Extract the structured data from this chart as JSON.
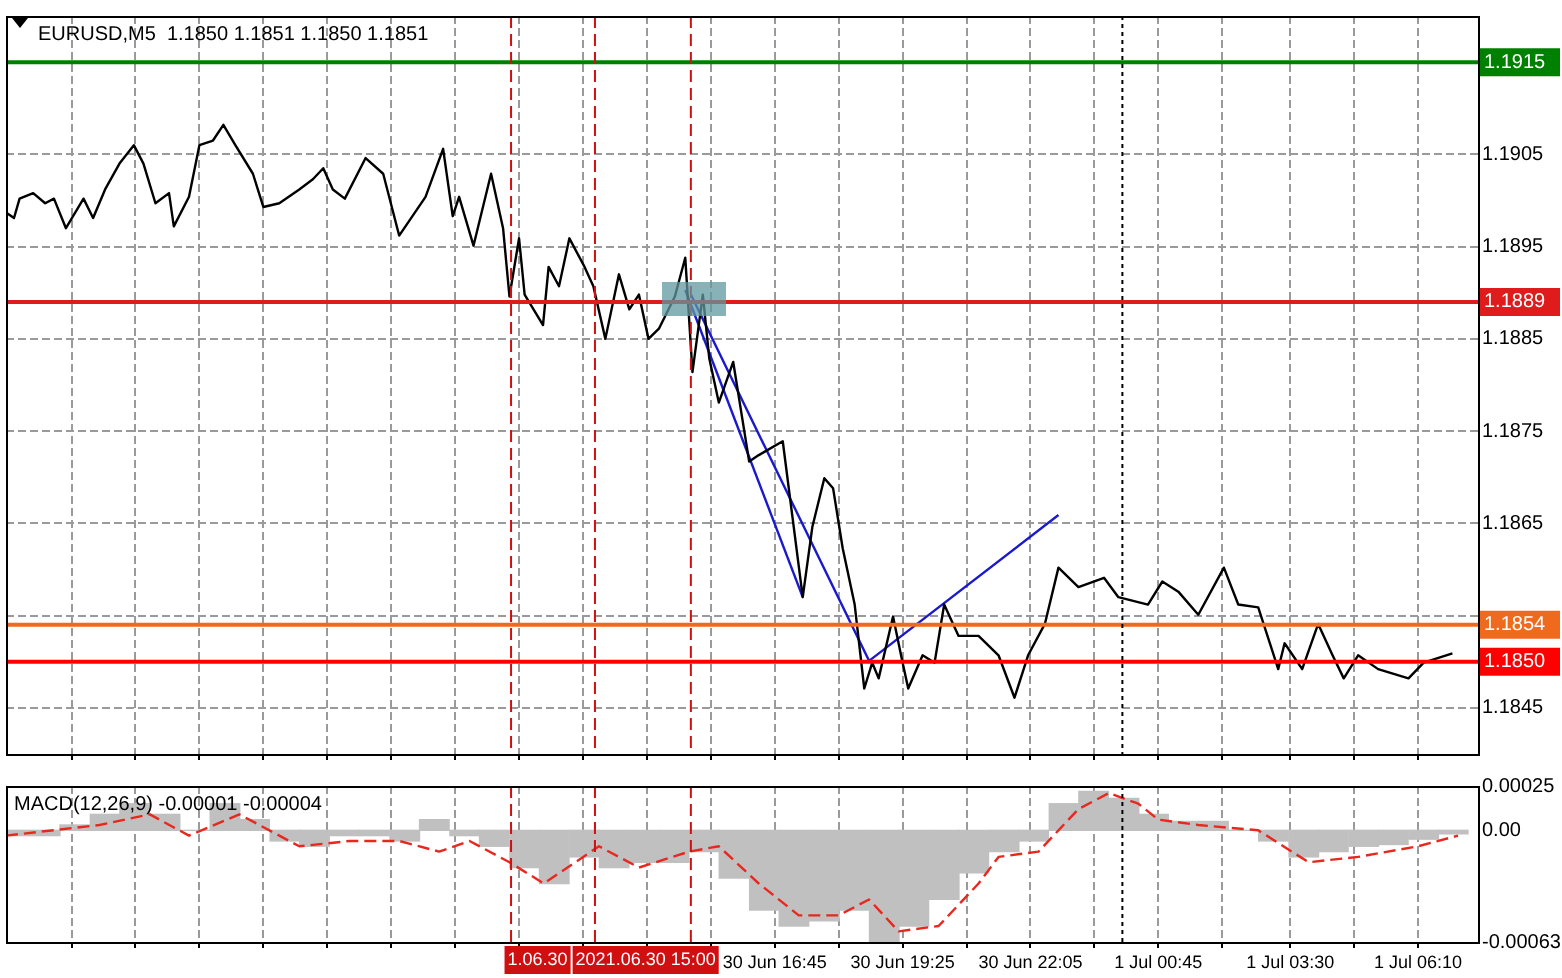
{
  "chart_data": [
    {
      "type": "line",
      "title": "EURUSD,M5  1.1850 1.1851 1.1850 1.1851",
      "xlim": [
        "2021-06-30T00:43",
        "2021-07-01T07:25"
      ],
      "ylim": [
        1.184,
        1.192
      ],
      "xticks": [
        "2021-06-30T02:05",
        "2021-06-30T03:25",
        "2021-06-30T04:45",
        "2021-06-30T06:05",
        "2021-06-30T07:25",
        "2021-06-30T08:45",
        "2021-06-30T10:05",
        "2021-06-30T11:25",
        "2021-06-30T12:45",
        "2021-06-30T14:05",
        "2021-06-30T15:25",
        "2021-06-30T16:45",
        "2021-06-30T18:05",
        "2021-06-30T19:25",
        "2021-06-30T20:45",
        "2021-06-30T22:05",
        "2021-06-30T23:25",
        "2021-07-01T00:45",
        "2021-07-01T02:05",
        "2021-07-01T03:30",
        "2021-07-01T04:50",
        "2021-07-01T06:10"
      ],
      "yticks": [
        1.1845,
        {
          "value": 1.1855,
          "label": null
        },
        1.1865,
        1.1875,
        1.1885,
        1.1895,
        1.1905,
        {
          "value": 1.1915,
          "label": null
        }
      ],
      "grid": true,
      "tick_labels": "y",
      "series": [
        {
          "color": "#000000",
          "x": [
            "2021-06-30T00:43",
            "2021-06-30T00:53",
            "2021-06-30T01:00",
            "2021-06-30T01:17",
            "2021-06-30T01:32",
            "2021-06-30T01:43",
            "2021-06-30T01:58",
            "2021-06-30T02:20",
            "2021-06-30T02:32",
            "2021-06-30T02:47",
            "2021-06-30T03:05",
            "2021-06-30T03:23",
            "2021-06-30T03:35",
            "2021-06-30T03:50",
            "2021-06-30T04:07",
            "2021-06-30T04:13",
            "2021-06-30T04:32",
            "2021-06-30T04:45",
            "2021-06-30T05:02",
            "2021-06-30T05:15",
            "2021-06-30T05:30",
            "2021-06-30T05:52",
            "2021-06-30T06:05",
            "2021-06-30T06:25",
            "2021-06-30T06:50",
            "2021-06-30T07:07",
            "2021-06-30T07:20",
            "2021-06-30T07:32",
            "2021-06-30T07:47",
            "2021-06-30T08:13",
            "2021-06-30T08:35",
            "2021-06-30T08:55",
            "2021-06-30T09:28",
            "2021-06-30T09:50",
            "2021-06-30T10:02",
            "2021-06-30T10:10",
            "2021-06-30T10:28",
            "2021-06-30T10:50",
            "2021-06-30T11:05",
            "2021-06-30T11:13",
            "2021-06-30T11:25",
            "2021-06-30T11:32",
            "2021-06-30T11:55",
            "2021-06-30T12:02",
            "2021-06-30T12:15",
            "2021-06-30T12:28",
            "2021-06-30T12:47",
            "2021-06-30T12:58",
            "2021-06-30T13:13",
            "2021-06-30T13:30",
            "2021-06-30T13:43",
            "2021-06-30T13:55",
            "2021-06-30T14:07",
            "2021-06-30T14:20",
            "2021-06-30T14:40",
            "2021-06-30T14:53",
            "2021-06-30T15:02",
            "2021-06-30T15:15",
            "2021-06-30T15:23",
            "2021-06-30T15:35",
            "2021-06-30T15:53",
            "2021-06-30T16:13",
            "2021-06-30T16:25",
            "2021-06-30T16:55",
            "2021-06-30T17:20",
            "2021-06-30T17:32",
            "2021-06-30T17:47",
            "2021-06-30T17:58",
            "2021-06-30T18:10",
            "2021-06-30T18:25",
            "2021-06-30T18:37",
            "2021-06-30T18:47",
            "2021-06-30T18:55",
            "2021-06-30T19:13",
            "2021-06-30T19:25",
            "2021-06-30T19:32",
            "2021-06-30T19:50",
            "2021-06-30T20:05",
            "2021-06-30T20:17",
            "2021-06-30T20:35",
            "2021-06-30T21:00",
            "2021-06-30T21:25",
            "2021-06-30T21:45",
            "2021-06-30T22:02",
            "2021-06-30T22:23",
            "2021-06-30T22:40",
            "2021-06-30T23:05",
            "2021-06-30T23:37",
            "2021-06-30T23:55",
            "2021-07-01T00:32",
            "2021-07-01T00:50",
            "2021-07-01T01:10",
            "2021-07-01T01:35",
            "2021-07-01T02:07",
            "2021-07-01T02:25",
            "2021-07-01T02:50",
            "2021-07-01T03:15",
            "2021-07-01T03:23",
            "2021-07-01T03:45",
            "2021-07-01T04:05",
            "2021-07-01T04:23",
            "2021-07-01T04:37",
            "2021-07-01T04:55",
            "2021-07-01T05:20",
            "2021-07-01T05:58",
            "2021-07-01T06:17",
            "2021-07-01T06:53"
          ],
          "values": [
            1.18987,
            1.18981,
            1.19002,
            1.19008,
            1.18997,
            1.19002,
            1.1897,
            1.19002,
            1.18981,
            1.19012,
            1.1904,
            1.1906,
            1.1904,
            1.18997,
            1.19008,
            1.18972,
            1.19004,
            1.1906,
            1.19065,
            1.19082,
            1.1906,
            1.19029,
            1.18993,
            1.18997,
            1.19012,
            1.19023,
            1.19035,
            1.19012,
            1.19002,
            1.19046,
            1.19029,
            1.18962,
            1.19004,
            1.19056,
            1.18983,
            1.19004,
            1.18951,
            1.19029,
            1.1897,
            1.18896,
            1.18959,
            1.18898,
            1.18865,
            1.18928,
            1.18907,
            1.18959,
            1.18928,
            1.18907,
            1.1885,
            1.1892,
            1.18882,
            1.18898,
            1.1885,
            1.18861,
            1.18896,
            1.18938,
            1.18814,
            1.18898,
            1.18829,
            1.18781,
            1.18825,
            1.18717,
            1.18724,
            1.18739,
            1.1857,
            1.18646,
            1.18699,
            1.18688,
            1.18623,
            1.18562,
            1.18471,
            1.18499,
            1.18482,
            1.18549,
            1.18499,
            1.18471,
            1.18507,
            1.18499,
            1.18562,
            1.18528,
            1.18528,
            1.18507,
            1.18461,
            1.18507,
            1.18541,
            1.18602,
            1.18581,
            1.18591,
            1.1857,
            1.18562,
            1.18587,
            1.18576,
            1.18551,
            1.18602,
            1.18562,
            1.18559,
            1.18492,
            1.1852,
            1.18492,
            1.18541,
            1.18507,
            1.18482,
            1.18507,
            1.18492,
            1.18482,
            1.18499,
            1.18509
          ]
        },
        {
          "type": "line",
          "color": "#1a1acc",
          "x": [
            "2021-06-30T14:53",
            "2021-06-30T17:20"
          ],
          "values": [
            1.18903,
            1.1857
          ]
        },
        {
          "type": "line",
          "color": "#1a1acc",
          "x": [
            "2021-06-30T15:00",
            "2021-06-30T18:43",
            "2021-06-30T22:40"
          ],
          "values": [
            1.18898,
            1.18501,
            1.18659
          ]
        }
      ],
      "ref_lines": [
        {
          "axis": "y",
          "value": 1.1915,
          "label": "1.1915",
          "color": "#008000"
        },
        {
          "axis": "y",
          "value": 1.1889,
          "label": "1.1889",
          "color": "#e01b1b"
        },
        {
          "axis": "y",
          "value": 1.1854,
          "label": "1.1854",
          "color": "#f06a1e"
        },
        {
          "axis": "y",
          "value": 1.185,
          "label": "1.1850",
          "color": "#ff0000"
        },
        {
          "axis": "x",
          "value": "2021-06-30T11:15",
          "color": "#d01010",
          "line_style": "dashed"
        },
        {
          "axis": "x",
          "value": "2021-06-30T13:00",
          "color": "#d01010",
          "line_style": "dashed"
        },
        {
          "axis": "x",
          "value": "2021-06-30T15:00",
          "color": "#d01010",
          "line_style": "dashed"
        },
        {
          "axis": "x",
          "value": "2021-07-01T00:00",
          "color": "#000000",
          "line_style": "dotted"
        }
      ]
    },
    {
      "type": "bar",
      "title": "MACD(12,26,9) -0.00001 -0.00004",
      "xlim": [
        "2021-06-30T00:43",
        "2021-07-01T07:25"
      ],
      "ylim": [
        -0.00063,
        0.00025
      ],
      "xticks": [
        {
          "value": "2021-06-30T02:05",
          "label": null
        },
        {
          "value": "2021-06-30T03:25",
          "label": null
        },
        {
          "value": "2021-06-30T04:45",
          "label": null
        },
        {
          "value": "2021-06-30T06:05",
          "label": null
        },
        {
          "value": "2021-06-30T07:25",
          "label": null
        },
        {
          "value": "2021-06-30T08:45",
          "label": null
        },
        {
          "value": "2021-06-30T10:05",
          "label": null
        },
        {
          "value": "2021-06-30T11:25",
          "label": null
        },
        {
          "value": "2021-06-30T12:45",
          "label": null
        },
        {
          "value": "2021-06-30T14:05",
          "label": null
        },
        {
          "value": "2021-06-30T15:25",
          "label": null
        },
        {
          "value": "2021-06-30T16:45",
          "label": "30 Jun 16:45"
        },
        {
          "value": "2021-06-30T18:05",
          "label": null
        },
        {
          "value": "2021-06-30T19:25",
          "label": "30 Jun 19:25"
        },
        {
          "value": "2021-06-30T20:45",
          "label": null
        },
        {
          "value": "2021-06-30T22:05",
          "label": "30 Jun 22:05"
        },
        {
          "value": "2021-06-30T23:25",
          "label": null
        },
        {
          "value": "2021-07-01T00:45",
          "label": "1 Jul 00:45"
        },
        {
          "value": "2021-07-01T02:05",
          "label": null
        },
        {
          "value": "2021-07-01T03:30",
          "label": "1 Jul 03:30"
        },
        {
          "value": "2021-07-01T04:50",
          "label": null
        },
        {
          "value": "2021-07-01T06:10",
          "label": "1 Jul 06:10"
        }
      ],
      "yticks": [
        -0.00063,
        {
          "value": 0,
          "label": "0.00"
        },
        0.00025
      ],
      "grid": "x",
      "series": [
        {
          "type": "bar",
          "color": "#c0c0c0",
          "x": [
            "2021-06-30T00:54",
            "2021-06-30T01:32",
            "2021-06-30T02:09",
            "2021-06-30T02:47",
            "2021-06-30T03:24",
            "2021-06-30T04:02",
            "2021-06-30T04:39",
            "2021-06-30T05:17",
            "2021-06-30T05:54",
            "2021-06-30T06:32",
            "2021-06-30T07:09",
            "2021-06-30T07:47",
            "2021-06-30T08:24",
            "2021-06-30T09:02",
            "2021-06-30T09:39",
            "2021-06-30T10:17",
            "2021-06-30T10:54",
            "2021-06-30T11:32",
            "2021-06-30T12:09",
            "2021-06-30T12:47",
            "2021-06-30T13:24",
            "2021-06-30T14:02",
            "2021-06-30T14:39",
            "2021-06-30T15:17",
            "2021-06-30T15:54",
            "2021-06-30T16:32",
            "2021-06-30T17:09",
            "2021-06-30T17:47",
            "2021-06-30T18:24",
            "2021-06-30T19:02",
            "2021-06-30T19:39",
            "2021-06-30T20:17",
            "2021-06-30T20:54",
            "2021-06-30T21:32",
            "2021-06-30T22:09",
            "2021-06-30T22:47",
            "2021-06-30T23:24",
            "2021-07-01T00:02",
            "2021-07-01T00:39",
            "2021-07-01T01:17",
            "2021-07-01T01:54",
            "2021-07-01T02:32",
            "2021-07-01T03:09",
            "2021-07-01T03:47",
            "2021-07-01T04:24",
            "2021-07-01T05:02",
            "2021-07-01T05:39",
            "2021-07-01T06:17",
            "2021-07-01T06:54"
          ],
          "values": [
            -3e-05,
            -3e-05,
            3e-05,
            9e-05,
            0.00015,
            9e-05,
            0,
            0.00015,
            6e-05,
            -6e-05,
            -9e-05,
            -3e-05,
            -3e-05,
            -6e-05,
            6e-05,
            -3e-05,
            -9e-05,
            -0.00021,
            -0.0003,
            -0.00015,
            -0.00021,
            -0.00018,
            -0.00018,
            -0.00012,
            -0.00027,
            -0.00045,
            -0.00054,
            -0.00051,
            -0.00045,
            -0.00063,
            -0.00054,
            -0.00039,
            -0.00024,
            -0.00012,
            -6e-05,
            0.00015,
            0.00022,
            0.00018,
            9e-05,
            5e-05,
            5e-05,
            0,
            -6e-05,
            -0.00015,
            -0.00012,
            -9e-05,
            -8e-05,
            -5e-05,
            -2e-05
          ]
        },
        {
          "type": "line",
          "color": "#e8281e",
          "line_style": "dashed",
          "x": [
            "2021-06-30T00:43",
            "2021-06-30T02:40",
            "2021-06-30T03:43",
            "2021-06-30T04:32",
            "2021-06-30T05:35",
            "2021-06-30T06:50",
            "2021-06-30T07:53",
            "2021-06-30T08:55",
            "2021-06-30T09:45",
            "2021-06-30T10:23",
            "2021-06-30T11:13",
            "2021-06-30T11:56",
            "2021-06-30T13:05",
            "2021-06-30T13:55",
            "2021-06-30T14:58",
            "2021-06-30T15:35",
            "2021-06-30T16:25",
            "2021-06-30T17:15",
            "2021-06-30T18:05",
            "2021-06-30T18:43",
            "2021-06-30T19:20",
            "2021-06-30T20:10",
            "2021-06-30T21:00",
            "2021-06-30T21:25",
            "2021-06-30T22:15",
            "2021-06-30T23:05",
            "2021-06-30T23:43",
            "2021-07-01T00:20",
            "2021-07-01T00:45",
            "2021-07-01T01:35",
            "2021-07-01T02:50",
            "2021-07-01T03:53",
            "2021-07-01T04:55",
            "2021-07-01T06:10",
            "2021-07-01T07:00"
          ],
          "values": [
            -3e-05,
            3e-05,
            9e-05,
            -3e-05,
            9e-05,
            -9e-05,
            -6e-05,
            -6e-05,
            -0.00012,
            -6e-05,
            -0.00018,
            -0.0003,
            -9e-05,
            -0.00021,
            -0.00012,
            -9e-05,
            -0.0003,
            -0.00048,
            -0.00048,
            -0.00039,
            -0.00057,
            -0.00054,
            -0.0003,
            -0.00015,
            -0.00012,
            0.00012,
            0.00021,
            0.00015,
            6e-05,
            3e-05,
            0,
            -0.00018,
            -0.00015,
            -9e-05,
            -3e-05
          ]
        }
      ],
      "ref_lines": [
        {
          "axis": "x",
          "value": "2021-06-30T11:15",
          "color": "#d01010",
          "line_style": "dashed"
        },
        {
          "axis": "x",
          "value": "2021-06-30T13:00",
          "label": "1.06.30",
          "color": "#d01010",
          "line_style": "dashed"
        },
        {
          "axis": "x",
          "value": "2021-06-30T15:00",
          "label": "2021.06.30 15:00",
          "color": "#d01010",
          "line_style": "dashed"
        },
        {
          "axis": "x",
          "value": "2021-07-01T00:00",
          "color": "#000000",
          "line_style": "dotted"
        }
      ]
    }
  ]
}
